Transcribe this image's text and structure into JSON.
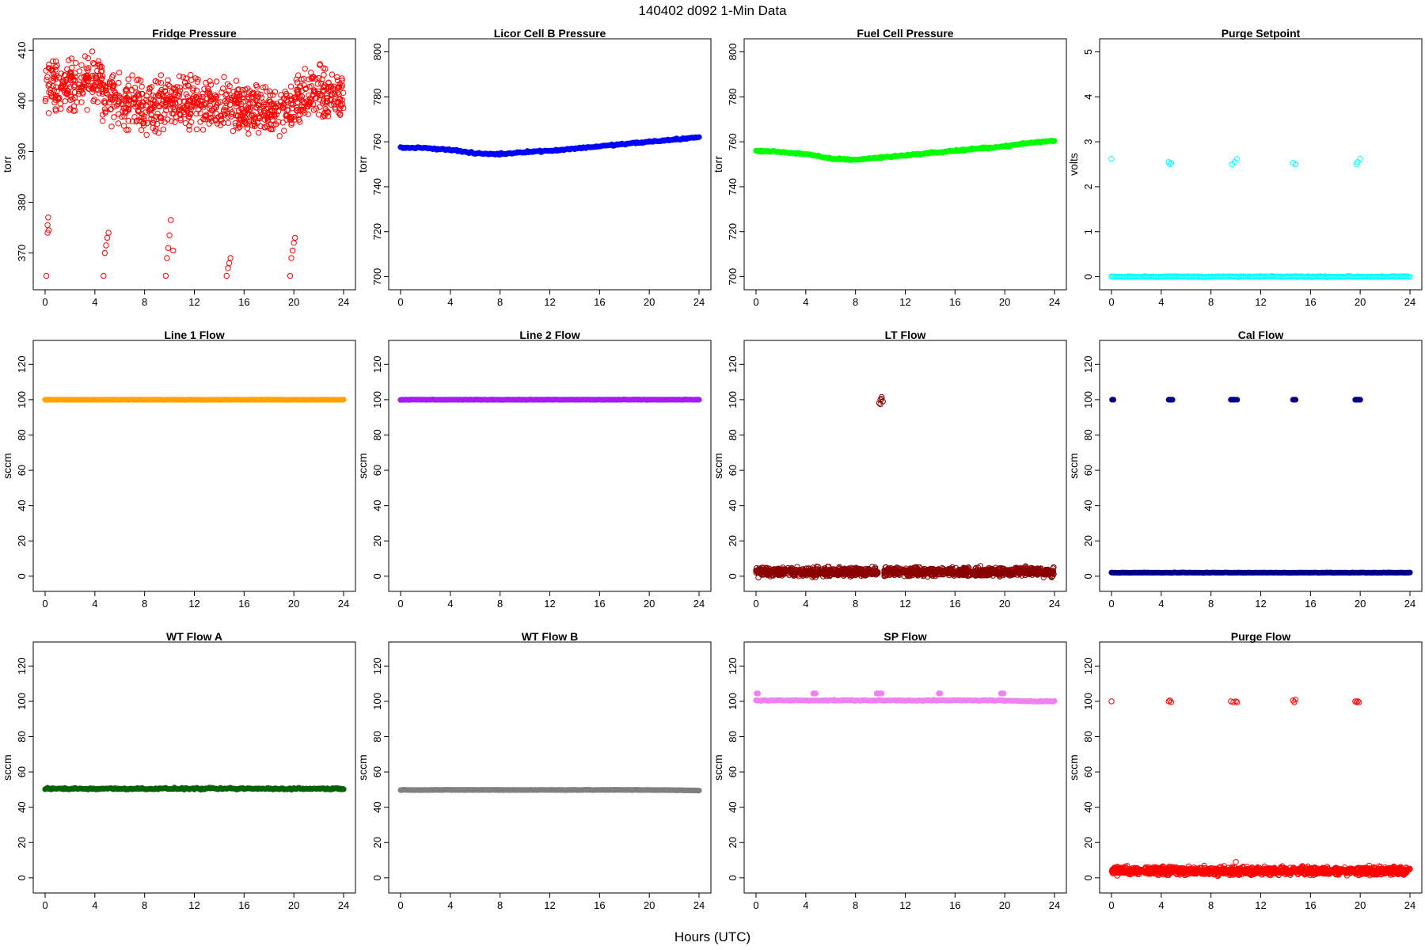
{
  "page": {
    "title": "140402   d092   1-Min Data",
    "xlabel": "Hours (UTC)"
  },
  "chart_data": [
    {
      "type": "scatter",
      "title": "Fridge Pressure",
      "ylabel": "torr",
      "xlim": [
        0,
        24
      ],
      "ylim": [
        364,
        411
      ],
      "x_ticks": [
        0,
        4,
        8,
        12,
        16,
        20,
        24
      ],
      "y_ticks": [
        370,
        380,
        390,
        400,
        410
      ],
      "marker": "open",
      "color": "#ff0000",
      "series": [
        {
          "profile": "noise",
          "segments": [
            [
              0,
              3,
              403
            ],
            [
              3,
              4.6,
              404
            ],
            [
              4.6,
              6,
              401
            ],
            [
              6,
              10,
              399.5
            ],
            [
              10,
              13,
              399.5
            ],
            [
              13,
              16,
              398.5
            ],
            [
              16,
              20,
              398
            ],
            [
              20,
              24,
              401
            ]
          ],
          "spread": 4,
          "count": 1000
        },
        {
          "clusters": [
            [
              0.1,
              365.5
            ],
            [
              0.2,
              374
            ],
            [
              0.2,
              375.5
            ],
            [
              0.25,
              377
            ],
            [
              0.3,
              374.5
            ],
            [
              4.7,
              365.5
            ],
            [
              4.8,
              370
            ],
            [
              4.9,
              371.5
            ],
            [
              5,
              373
            ],
            [
              5.1,
              374
            ],
            [
              9.7,
              365.5
            ],
            [
              9.8,
              369
            ],
            [
              9.9,
              371
            ],
            [
              10,
              373.5
            ],
            [
              10.1,
              376.5
            ],
            [
              10.3,
              370.5
            ],
            [
              14.6,
              365.5
            ],
            [
              14.7,
              367
            ],
            [
              14.8,
              368
            ],
            [
              14.9,
              369
            ],
            [
              19.7,
              365.5
            ],
            [
              19.8,
              369
            ],
            [
              19.9,
              370.5
            ],
            [
              20,
              372
            ],
            [
              20.1,
              373
            ]
          ]
        }
      ]
    },
    {
      "type": "scatter",
      "title": "Licor Cell B Pressure",
      "ylabel": "torr",
      "xlim": [
        0,
        24
      ],
      "ylim": [
        697,
        803
      ],
      "x_ticks": [
        0,
        4,
        8,
        12,
        16,
        20,
        24
      ],
      "y_ticks": [
        700,
        720,
        740,
        760,
        780,
        800
      ],
      "marker": "filled",
      "color": "#0000ff",
      "series": [
        {
          "profile": "curve",
          "x": [
            0,
            2,
            4,
            6,
            8,
            10,
            12,
            14,
            16,
            18,
            20,
            22,
            24
          ],
          "y": [
            757.5,
            757.2,
            756.5,
            754.8,
            754.5,
            755.5,
            756,
            757,
            758,
            759,
            760,
            761,
            762
          ],
          "spread": 0.3
        }
      ]
    },
    {
      "type": "scatter",
      "title": "Fuel Cell Pressure",
      "ylabel": "torr",
      "xlim": [
        0,
        24
      ],
      "ylim": [
        697,
        803
      ],
      "x_ticks": [
        0,
        4,
        8,
        12,
        16,
        20,
        24
      ],
      "y_ticks": [
        700,
        720,
        740,
        760,
        780,
        800
      ],
      "marker": "filled",
      "color": "#00ff00",
      "series": [
        {
          "profile": "curve",
          "x": [
            0,
            2,
            4,
            6,
            8,
            10,
            12,
            14,
            16,
            18,
            20,
            22,
            24
          ],
          "y": [
            756,
            755.5,
            754.5,
            752.5,
            752,
            753,
            754,
            755,
            756,
            757,
            758,
            759.5,
            760.5
          ],
          "spread": 0.3
        }
      ]
    },
    {
      "type": "scatter",
      "title": "Purge Setpoint",
      "ylabel": "volts",
      "xlim": [
        0,
        24
      ],
      "ylim": [
        -0.15,
        5.15
      ],
      "x_ticks": [
        0,
        4,
        8,
        12,
        16,
        20,
        24
      ],
      "y_ticks": [
        0,
        1,
        2,
        3,
        4,
        5
      ],
      "marker": "open",
      "color": "#00ffff",
      "series": [
        {
          "profile": "flat",
          "value": 0,
          "spread": 0.01
        },
        {
          "clusters": [
            [
              0,
              2.62
            ],
            [
              4.6,
              2.55
            ],
            [
              4.7,
              2.5
            ],
            [
              4.8,
              2.53
            ],
            [
              9.7,
              2.5
            ],
            [
              9.9,
              2.55
            ],
            [
              10.1,
              2.62
            ],
            [
              14.6,
              2.53
            ],
            [
              14.8,
              2.5
            ],
            [
              19.7,
              2.5
            ],
            [
              19.8,
              2.55
            ],
            [
              20,
              2.62
            ]
          ]
        }
      ]
    },
    {
      "type": "scatter",
      "title": "Line 1 Flow",
      "ylabel": "sccm",
      "xlim": [
        0,
        24
      ],
      "ylim": [
        -5,
        130
      ],
      "x_ticks": [
        0,
        4,
        8,
        12,
        16,
        20,
        24
      ],
      "y_ticks": [
        0,
        20,
        40,
        60,
        80,
        100,
        120
      ],
      "marker": "filled",
      "color": "#ffa500",
      "series": [
        {
          "profile": "flat",
          "value": 100,
          "spread": 0.1
        }
      ]
    },
    {
      "type": "scatter",
      "title": "Line 2 Flow",
      "ylabel": "sccm",
      "xlim": [
        0,
        24
      ],
      "ylim": [
        -5,
        130
      ],
      "x_ticks": [
        0,
        4,
        8,
        12,
        16,
        20,
        24
      ],
      "y_ticks": [
        0,
        20,
        40,
        60,
        80,
        100,
        120
      ],
      "marker": "filled",
      "color": "#a020f0",
      "series": [
        {
          "profile": "flat",
          "value": 100,
          "spread": 0.1
        }
      ]
    },
    {
      "type": "scatter",
      "title": "LT Flow",
      "ylabel": "sccm",
      "xlim": [
        0,
        24
      ],
      "ylim": [
        -5,
        130
      ],
      "x_ticks": [
        0,
        4,
        8,
        12,
        16,
        20,
        24
      ],
      "y_ticks": [
        0,
        20,
        40,
        60,
        80,
        100,
        120
      ],
      "marker": "open",
      "color": "#8b0000",
      "series": [
        {
          "profile": "noise",
          "segments": [
            [
              0,
              9.8,
              2.5
            ],
            [
              10.3,
              24,
              2.5
            ]
          ],
          "spread": 2,
          "count": 1300
        },
        {
          "clusters": [
            [
              9.9,
              98
            ],
            [
              10,
              100
            ],
            [
              10.1,
              101.5
            ],
            [
              10.2,
              99
            ],
            [
              10,
              97.5
            ],
            [
              10.1,
              100.5
            ]
          ]
        }
      ]
    },
    {
      "type": "scatter",
      "title": "Cal Flow",
      "ylabel": "sccm",
      "xlim": [
        0,
        24
      ],
      "ylim": [
        -5,
        130
      ],
      "x_ticks": [
        0,
        4,
        8,
        12,
        16,
        20,
        24
      ],
      "y_ticks": [
        0,
        20,
        40,
        60,
        80,
        100,
        120
      ],
      "marker": "filled",
      "color": "#000080",
      "series": [
        {
          "profile": "flat",
          "value": 2,
          "spread": 0.1
        },
        {
          "clusters": [
            [
              0.05,
              100
            ],
            [
              0.15,
              100
            ],
            [
              4.6,
              100
            ],
            [
              4.7,
              100
            ],
            [
              4.8,
              100
            ],
            [
              4.9,
              100
            ],
            [
              9.6,
              100
            ],
            [
              9.7,
              100
            ],
            [
              9.8,
              100
            ],
            [
              9.9,
              100
            ],
            [
              10.1,
              100
            ],
            [
              14.6,
              100
            ],
            [
              14.7,
              100
            ],
            [
              14.8,
              100
            ],
            [
              19.6,
              100
            ],
            [
              19.7,
              100
            ],
            [
              19.8,
              100
            ],
            [
              19.9,
              100
            ],
            [
              20,
              100
            ]
          ]
        }
      ]
    },
    {
      "type": "scatter",
      "title": "WT Flow A",
      "ylabel": "sccm",
      "xlim": [
        0,
        24
      ],
      "ylim": [
        -5,
        130
      ],
      "x_ticks": [
        0,
        4,
        8,
        12,
        16,
        20,
        24
      ],
      "y_ticks": [
        0,
        20,
        40,
        60,
        80,
        100,
        120
      ],
      "marker": "filled",
      "color": "#006400",
      "series": [
        {
          "profile": "flat",
          "value": 50.5,
          "spread": 0.4
        }
      ]
    },
    {
      "type": "scatter",
      "title": "WT Flow B",
      "ylabel": "sccm",
      "xlim": [
        0,
        24
      ],
      "ylim": [
        -5,
        130
      ],
      "x_ticks": [
        0,
        4,
        8,
        12,
        16,
        20,
        24
      ],
      "y_ticks": [
        0,
        20,
        40,
        60,
        80,
        100,
        120
      ],
      "marker": "filled",
      "color": "#808080",
      "series": [
        {
          "profile": "curve",
          "x": [
            0,
            20,
            24
          ],
          "y": [
            49.8,
            49.8,
            49.5
          ],
          "spread": 0.1
        }
      ]
    },
    {
      "type": "scatter",
      "title": "SP Flow",
      "ylabel": "sccm",
      "xlim": [
        0,
        24
      ],
      "ylim": [
        -5,
        130
      ],
      "x_ticks": [
        0,
        4,
        8,
        12,
        16,
        20,
        24
      ],
      "y_ticks": [
        0,
        20,
        40,
        60,
        80,
        100,
        120
      ],
      "marker": "filled",
      "color": "#ee82ee",
      "series": [
        {
          "profile": "curve",
          "x": [
            0,
            4.5,
            5,
            9.5,
            10.5,
            14.5,
            15,
            19.5,
            20.5,
            24
          ],
          "y": [
            100.5,
            100.5,
            100.5,
            100.5,
            100.5,
            100.5,
            100.5,
            100.5,
            100.2,
            100
          ],
          "spread": 0.2
        },
        {
          "clusters": [
            [
              0.05,
              104.5
            ],
            [
              0.15,
              104.5
            ],
            [
              4.6,
              104.5
            ],
            [
              4.7,
              104.5
            ],
            [
              4.8,
              104.5
            ],
            [
              9.7,
              104.5
            ],
            [
              9.8,
              104.5
            ],
            [
              9.9,
              104.5
            ],
            [
              10,
              104.5
            ],
            [
              10.1,
              104.5
            ],
            [
              14.7,
              104.5
            ],
            [
              14.8,
              104.5
            ],
            [
              19.7,
              104.5
            ],
            [
              19.8,
              104.5
            ],
            [
              19.9,
              104.5
            ]
          ]
        }
      ]
    },
    {
      "type": "scatter",
      "title": "Purge Flow",
      "ylabel": "sccm",
      "xlim": [
        0,
        24
      ],
      "ylim": [
        -5,
        130
      ],
      "x_ticks": [
        0,
        4,
        8,
        12,
        16,
        20,
        24
      ],
      "y_ticks": [
        0,
        20,
        40,
        60,
        80,
        100,
        120
      ],
      "marker": "open",
      "color": "#ff0000",
      "series": [
        {
          "profile": "noise",
          "segments": [
            [
              0,
              24,
              4
            ]
          ],
          "spread": 1.8,
          "count": 1300
        },
        {
          "clusters": [
            [
              0,
              100
            ],
            [
              4.6,
              100
            ],
            [
              4.7,
              100.5
            ],
            [
              4.8,
              99.5
            ],
            [
              9.6,
              100
            ],
            [
              9.8,
              99.5
            ],
            [
              10,
              100
            ],
            [
              10.1,
              99.5
            ],
            [
              14.6,
              100.5
            ],
            [
              14.7,
              99.5
            ],
            [
              14.8,
              101
            ],
            [
              19.6,
              100
            ],
            [
              19.7,
              99.5
            ],
            [
              19.8,
              100
            ],
            [
              19.9,
              99.5
            ],
            [
              10,
              9
            ]
          ]
        }
      ]
    }
  ]
}
